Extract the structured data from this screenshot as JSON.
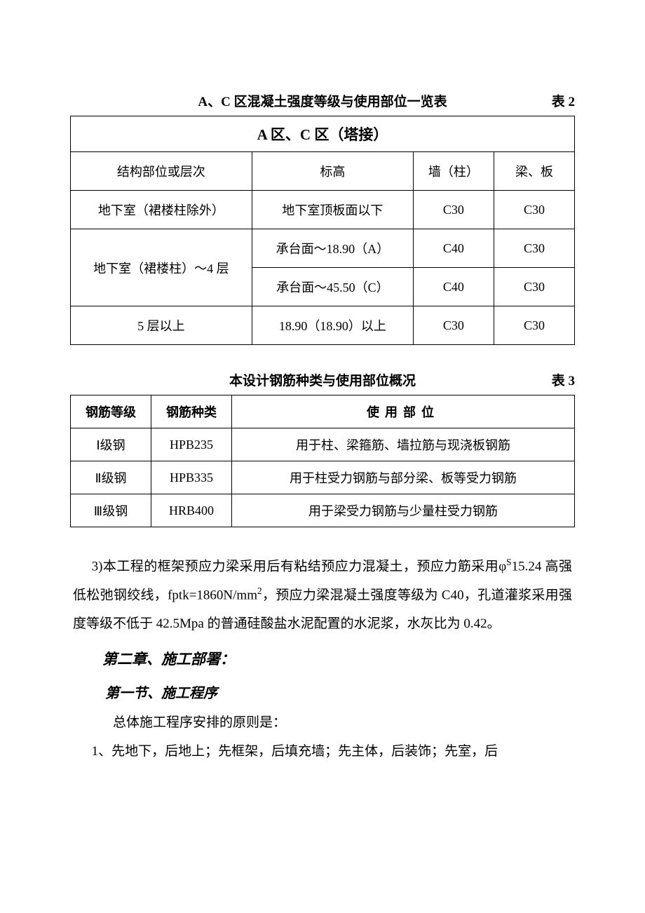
{
  "table1": {
    "caption": "A、C 区混凝土强度等级与使用部位一览表",
    "caption_label": "表 2",
    "header": "A 区、C 区（塔接）",
    "cols": [
      "结构部位或层次",
      "标高",
      "墙（柱）",
      "梁、板"
    ],
    "rows": [
      [
        "地下室（裙楼柱除外）",
        "地下室顶板面以下",
        "C30",
        "C30"
      ],
      [
        "地下室（裙楼柱）～4 层",
        "承台面～18.90（A）",
        "C40",
        "C30"
      ],
      [
        "",
        "承台面～45.50（C）",
        "C40",
        "C30"
      ],
      [
        "5 层以上",
        "18.90（18.90）以上",
        "C30",
        "C30"
      ]
    ]
  },
  "table2": {
    "caption": "本设计钢筋种类与使用部位概况",
    "caption_label": "表 3",
    "cols": [
      "钢筋等级",
      "钢筋种类",
      "使用部位"
    ],
    "rows": [
      [
        "Ⅰ级钢",
        "HPB235",
        "用于柱、梁箍筋、墙拉筋与现浇板钢筋"
      ],
      [
        "Ⅱ级钢",
        "HPB335",
        "用于柱受力钢筋与部分梁、板等受力钢筋"
      ],
      [
        "Ⅲ级钢",
        "HRB400",
        "用于梁受力钢筋与少量柱受力钢筋"
      ]
    ]
  },
  "para1_pre": "3)本工程的框架预应力梁采用后有粘结预应力混凝土，预应力筋采用φ",
  "para1_sup1": "S",
  "para1_mid1": "15.24 高强低松弛钢绞线，fptk=1860N/mm",
  "para1_sup2": "2",
  "para1_post": "，预应力梁混凝土强度等级为 C40，孔道灌浆采用强度等级不低于 42.5Mpa 的普通硅酸盐水泥配置的水泥浆，水灰比为 0.42。",
  "chapter": "第二章、施工部署：",
  "section": "第一节、施工程序",
  "para2": "总体施工程序安排的原则是：",
  "para3": "1、先地下，后地上；先框架，后填充墙；先主体，后装饰；先室，后"
}
